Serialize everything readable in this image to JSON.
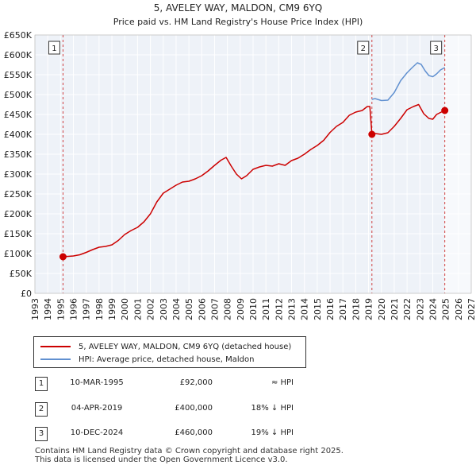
{
  "chart_data": {
    "type": "line",
    "title": "5, AVELEY WAY, MALDON, CM9 6YQ",
    "subtitle": "Price paid vs. HM Land Registry's House Price Index (HPI)",
    "xlabel": "",
    "ylabel": "",
    "xlim": [
      1993,
      2027
    ],
    "ylim": [
      0,
      650000
    ],
    "x_ticks": [
      "1993",
      "1994",
      "1995",
      "1996",
      "1997",
      "1998",
      "1999",
      "2000",
      "2001",
      "2002",
      "2003",
      "2004",
      "2005",
      "2006",
      "2007",
      "2008",
      "2009",
      "2010",
      "2011",
      "2012",
      "2013",
      "2014",
      "2015",
      "2016",
      "2017",
      "2018",
      "2019",
      "2020",
      "2021",
      "2022",
      "2023",
      "2024",
      "2025",
      "2026",
      "2027"
    ],
    "y_ticks": [
      {
        "value": 0,
        "label": "£0"
      },
      {
        "value": 50000,
        "label": "£50K"
      },
      {
        "value": 100000,
        "label": "£100K"
      },
      {
        "value": 150000,
        "label": "£150K"
      },
      {
        "value": 200000,
        "label": "£200K"
      },
      {
        "value": 250000,
        "label": "£250K"
      },
      {
        "value": 300000,
        "label": "£300K"
      },
      {
        "value": 350000,
        "label": "£350K"
      },
      {
        "value": 400000,
        "label": "£400K"
      },
      {
        "value": 450000,
        "label": "£450K"
      },
      {
        "value": 500000,
        "label": "£500K"
      },
      {
        "value": 550000,
        "label": "£550K"
      },
      {
        "value": 600000,
        "label": "£600K"
      },
      {
        "value": 650000,
        "label": "£650K"
      }
    ],
    "grid": true,
    "series": [
      {
        "name": "5, AVELEY WAY, MALDON, CM9 6YQ (detached house)",
        "color": "#cc0000",
        "x": [
          1995.19,
          1995.6,
          1996.0,
          1996.5,
          1997.0,
          1997.5,
          1998.0,
          1998.5,
          1999.0,
          1999.5,
          2000.0,
          2000.5,
          2001.0,
          2001.5,
          2002.0,
          2002.5,
          2003.0,
          2003.5,
          2004.0,
          2004.5,
          2005.0,
          2005.5,
          2006.0,
          2006.5,
          2007.0,
          2007.5,
          2007.9,
          2008.3,
          2008.7,
          2009.1,
          2009.5,
          2010.0,
          2010.5,
          2011.0,
          2011.5,
          2012.0,
          2012.5,
          2013.0,
          2013.5,
          2014.0,
          2014.5,
          2015.0,
          2015.5,
          2016.0,
          2016.5,
          2017.0,
          2017.5,
          2018.0,
          2018.5,
          2018.9,
          2019.1,
          2019.26,
          2019.5,
          2020.0,
          2020.5,
          2021.0,
          2021.5,
          2022.0,
          2022.5,
          2022.9,
          2023.3,
          2023.7,
          2024.0,
          2024.3,
          2024.6,
          2024.94
        ],
        "values": [
          92000,
          93000,
          94000,
          97000,
          103000,
          110000,
          116000,
          118000,
          122000,
          133000,
          148000,
          158000,
          166000,
          180000,
          200000,
          230000,
          252000,
          262000,
          272000,
          280000,
          282000,
          288000,
          296000,
          308000,
          322000,
          335000,
          342000,
          320000,
          300000,
          288000,
          296000,
          312000,
          318000,
          322000,
          320000,
          326000,
          322000,
          334000,
          340000,
          350000,
          362000,
          372000,
          385000,
          405000,
          420000,
          430000,
          448000,
          456000,
          460000,
          470000,
          470000,
          400000,
          402000,
          400000,
          404000,
          420000,
          440000,
          462000,
          470000,
          475000,
          452000,
          440000,
          438000,
          450000,
          455000,
          460000
        ]
      },
      {
        "name": "HPI: Average price, detached house, Maldon",
        "color": "#6090d0",
        "x": [
          2019.26,
          2019.5,
          2020.0,
          2020.5,
          2021.0,
          2021.5,
          2022.0,
          2022.4,
          2022.8,
          2023.1,
          2023.4,
          2023.7,
          2024.0,
          2024.3,
          2024.6,
          2024.94
        ],
        "values": [
          488000,
          490000,
          485000,
          486000,
          505000,
          535000,
          555000,
          568000,
          580000,
          576000,
          560000,
          548000,
          545000,
          552000,
          562000,
          568000
        ]
      }
    ],
    "sales": [
      {
        "marker": "1",
        "x": 1995.19,
        "value": 92000
      },
      {
        "marker": "2",
        "x": 2019.26,
        "value": 400000
      },
      {
        "marker": "3",
        "x": 2024.94,
        "value": 460000
      }
    ]
  },
  "legend": {
    "property_label": "5, AVELEY WAY, MALDON, CM9 6YQ (detached house)",
    "hpi_label": "HPI: Average price, detached house, Maldon",
    "property_color": "#cc0000",
    "hpi_color": "#6090d0"
  },
  "transactions": [
    {
      "marker": "1",
      "date": "10-MAR-1995",
      "price": "£92,000",
      "hpi": "≈ HPI"
    },
    {
      "marker": "2",
      "date": "04-APR-2019",
      "price": "£400,000",
      "hpi": "18% ↓ HPI"
    },
    {
      "marker": "3",
      "date": "10-DEC-2024",
      "price": "£460,000",
      "hpi": "19% ↓ HPI"
    }
  ],
  "footer": {
    "line1": "Contains HM Land Registry data © Crown copyright and database right 2025.",
    "line2": "This data is licensed under the Open Government Licence v3.0."
  }
}
